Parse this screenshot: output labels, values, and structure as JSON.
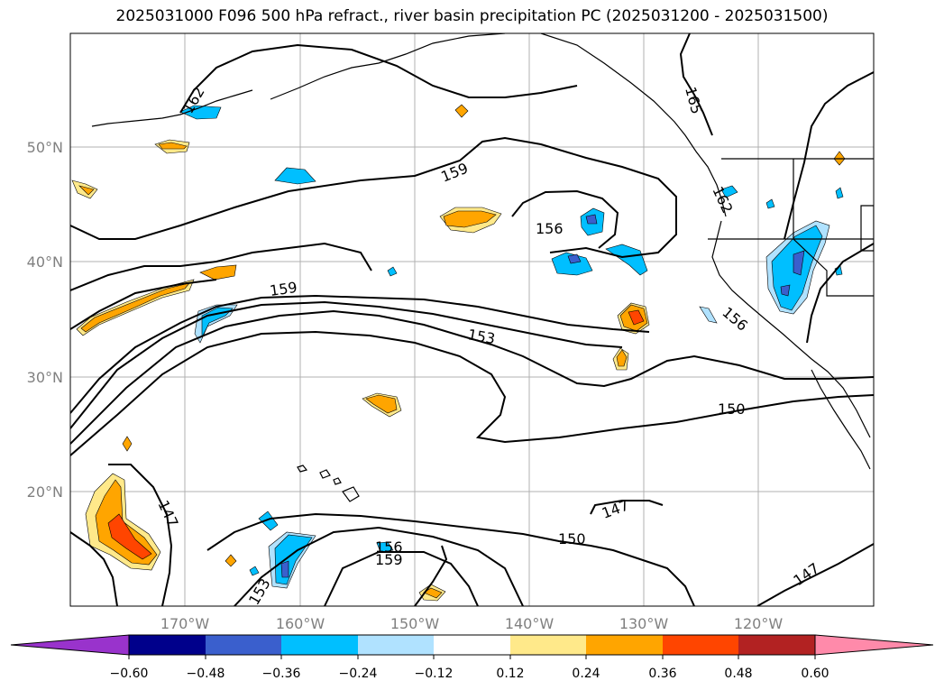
{
  "title": "2025031000 F096 500 hPa refract., river basin precipitation PC (2025031200 - 2025031500)",
  "axes": {
    "lon_ticks": [
      "170°W",
      "160°W",
      "150°W",
      "140°W",
      "130°W",
      "120°W"
    ],
    "lat_ticks": [
      "50°N",
      "40°N",
      "30°N",
      "20°N"
    ],
    "grid": true,
    "tick_color": "#808080"
  },
  "contour_labels": [
    "162",
    "159",
    "159",
    "156",
    "153",
    "150",
    "147",
    "147",
    "147",
    "150",
    "156",
    "159",
    "165",
    "162",
    "156",
    "153"
  ],
  "colorbar": {
    "ticks": [
      "−0.60",
      "−0.48",
      "−0.36",
      "−0.24",
      "−0.12",
      "0.12",
      "0.24",
      "0.36",
      "0.48",
      "0.60"
    ],
    "colors": [
      "#9933cc",
      "#00008b",
      "#3a5fcd",
      "#00bfff",
      "#b0e2ff",
      "#ffffff",
      "#ffe98a",
      "#ffa500",
      "#ff4500",
      "#b22222",
      "#ff8aaa"
    ]
  },
  "shading_colors": {
    "neg_light": "#b0e2ff",
    "neg_mid": "#00bfff",
    "neg_dark": "#3a5fcd",
    "neg_darkest": "#9933cc",
    "pos_light": "#ffe98a",
    "pos_mid": "#ffa500",
    "pos_dark": "#ff4500"
  }
}
